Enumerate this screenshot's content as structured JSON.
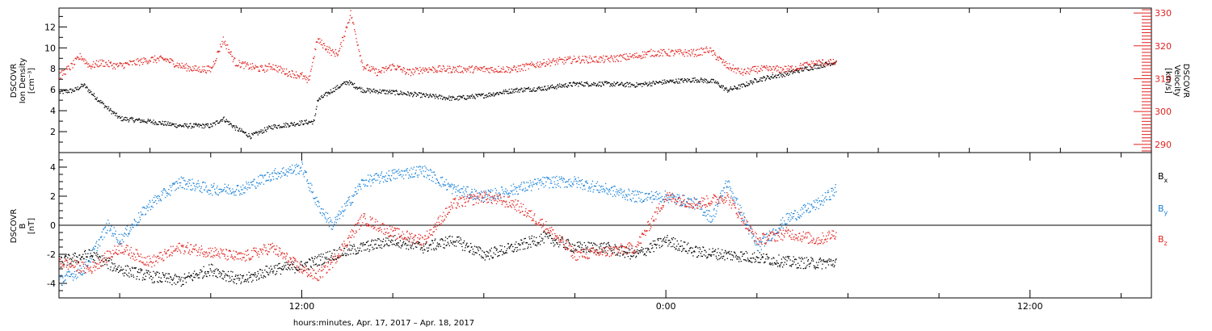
{
  "chart_data": [
    {
      "type": "scatter",
      "panel": "top",
      "ylabel": [
        "DSCOVR",
        "Ion Density",
        "[cm⁻³]"
      ],
      "ylim": [
        0,
        13.8
      ],
      "yticks": [
        2,
        4,
        6,
        8,
        10,
        12
      ],
      "y2label": [
        "DSCOVR",
        "Velocity",
        "[km/s]"
      ],
      "y2lim": [
        287.5,
        331.5
      ],
      "y2ticks": [
        290,
        300,
        310,
        320,
        330
      ],
      "x_hours_range": [
        4,
        33.6
      ],
      "series": [
        {
          "name": "Ion Density",
          "axis": "left",
          "color": "#000000",
          "x": [
            4.0,
            4.5,
            4.8,
            5.1,
            5.5,
            6.0,
            7.0,
            8.0,
            9.0,
            9.4,
            9.8,
            10.3,
            11.0,
            12.0,
            12.4,
            12.5,
            13.0,
            13.5,
            14.0,
            15.0,
            16.0,
            17.0,
            18.0,
            19.0,
            20.0,
            21.0,
            22.0,
            23.0,
            24.0,
            25.0,
            25.6,
            26.0,
            26.5,
            27.0,
            28.0,
            28.5,
            29.0,
            29.6
          ],
          "y": [
            5.8,
            6.0,
            6.5,
            5.6,
            4.5,
            3.3,
            3.0,
            2.6,
            2.6,
            3.3,
            2.4,
            1.6,
            2.5,
            2.9,
            3.0,
            5.0,
            6.0,
            6.8,
            6.0,
            5.8,
            5.5,
            5.2,
            5.5,
            6.0,
            6.2,
            6.6,
            6.6,
            6.5,
            6.8,
            7.0,
            6.8,
            6.0,
            6.4,
            7.0,
            7.6,
            8.0,
            8.3,
            8.7
          ]
        },
        {
          "name": "Velocity",
          "axis": "right",
          "color": "#e0231f",
          "x": [
            4.0,
            4.4,
            4.7,
            5.0,
            5.4,
            5.9,
            6.5,
            7.0,
            7.5,
            8.0,
            8.5,
            9.0,
            9.4,
            9.8,
            10.2,
            10.7,
            11.0,
            11.5,
            12.0,
            12.2,
            12.5,
            13.0,
            13.2,
            13.6,
            14.0,
            14.5,
            15.0,
            15.5,
            16.0,
            17.0,
            18.0,
            19.0,
            20.0,
            21.0,
            22.0,
            23.0,
            23.5,
            24.0,
            25.0,
            25.4,
            26.0,
            26.5,
            27.0,
            28.0,
            29.0,
            29.6
          ],
          "y": [
            311,
            314,
            317,
            314,
            315,
            314,
            315,
            316,
            316,
            314,
            313,
            313,
            322,
            315,
            314,
            313,
            314,
            312,
            311,
            309,
            322,
            318,
            318,
            330,
            314,
            312,
            314,
            312,
            313,
            313,
            313,
            313,
            315,
            316,
            316,
            317,
            318,
            318,
            318,
            319,
            314,
            312,
            313,
            313,
            315,
            315
          ]
        }
      ]
    },
    {
      "type": "scatter",
      "panel": "bottom",
      "ylabel": [
        "DSCOVR",
        "B",
        "[nT]"
      ],
      "ylim": [
        -5.0,
        5.0
      ],
      "yticks": [
        -4,
        -2,
        0,
        2,
        4
      ],
      "zero_line": true,
      "x_hours_range": [
        4,
        33.6
      ],
      "xticks_hours": [
        12,
        24,
        36
      ],
      "xtick_labels": [
        "12:00",
        "0:00",
        "12:00"
      ],
      "xlim_hours": [
        4,
        40
      ],
      "xlabel": "hours:minutes, Apr. 17, 2017 – Apr. 18, 2017",
      "legend": [
        {
          "name": "B",
          "sub": "x",
          "color": "#000000"
        },
        {
          "name": "B",
          "sub": "y",
          "color": "#1a82d8"
        },
        {
          "name": "B",
          "sub": "z",
          "color": "#e0231f"
        }
      ],
      "series": [
        {
          "name": "Bx",
          "color": "#000000",
          "x": [
            4.0,
            5.0,
            6.0,
            7.0,
            8.0,
            9.0,
            10.0,
            11.0,
            12.0,
            13.0,
            14.0,
            15.0,
            16.0,
            17.0,
            18.0,
            19.0,
            20.0,
            21.0,
            22.0,
            23.0,
            24.0,
            25.0,
            26.0,
            27.0,
            28.0,
            29.0,
            29.6
          ],
          "y": [
            -2.5,
            -2.0,
            -3.0,
            -3.5,
            -3.8,
            -3.0,
            -3.8,
            -3.0,
            -2.8,
            -2.0,
            -1.5,
            -1.0,
            -1.5,
            -1.0,
            -2.0,
            -1.5,
            -0.8,
            -1.5,
            -1.5,
            -2.0,
            -1.0,
            -1.8,
            -2.0,
            -2.2,
            -2.5,
            -2.6,
            -2.5
          ]
        },
        {
          "name": "By",
          "color": "#1a82d8",
          "x": [
            4.0,
            4.8,
            5.6,
            6.0,
            7.0,
            8.0,
            9.0,
            10.0,
            11.0,
            12.0,
            12.5,
            13.0,
            14.0,
            15.0,
            16.0,
            17.0,
            18.0,
            19.0,
            20.0,
            21.0,
            22.0,
            23.0,
            24.0,
            25.0,
            25.5,
            26.0,
            27.0,
            28.0,
            29.0,
            29.6
          ],
          "y": [
            -3.8,
            -3.0,
            0.0,
            -1.0,
            1.5,
            3.0,
            2.5,
            2.5,
            3.5,
            4.0,
            1.5,
            0.0,
            3.0,
            3.5,
            3.8,
            2.5,
            2.0,
            2.5,
            3.0,
            3.0,
            2.5,
            2.0,
            2.0,
            1.5,
            0.5,
            3.0,
            -1.5,
            0.5,
            1.5,
            2.5
          ]
        },
        {
          "name": "Bz",
          "color": "#e0231f",
          "x": [
            4.0,
            5.0,
            6.0,
            7.0,
            8.0,
            9.0,
            10.0,
            11.0,
            12.0,
            12.5,
            13.0,
            14.0,
            15.0,
            16.0,
            17.0,
            18.0,
            19.0,
            20.0,
            21.0,
            22.0,
            23.0,
            24.0,
            25.0,
            26.0,
            27.0,
            28.0,
            29.0,
            29.6
          ],
          "y": [
            -2.5,
            -3.0,
            -1.5,
            -2.5,
            -1.5,
            -1.8,
            -2.2,
            -1.5,
            -3.0,
            -3.5,
            -2.5,
            0.5,
            -0.5,
            -1.0,
            1.5,
            2.0,
            1.5,
            0.0,
            -2.0,
            -1.8,
            -1.5,
            2.0,
            1.5,
            2.0,
            -1.0,
            -0.5,
            -1.0,
            -0.5
          ]
        }
      ]
    }
  ]
}
